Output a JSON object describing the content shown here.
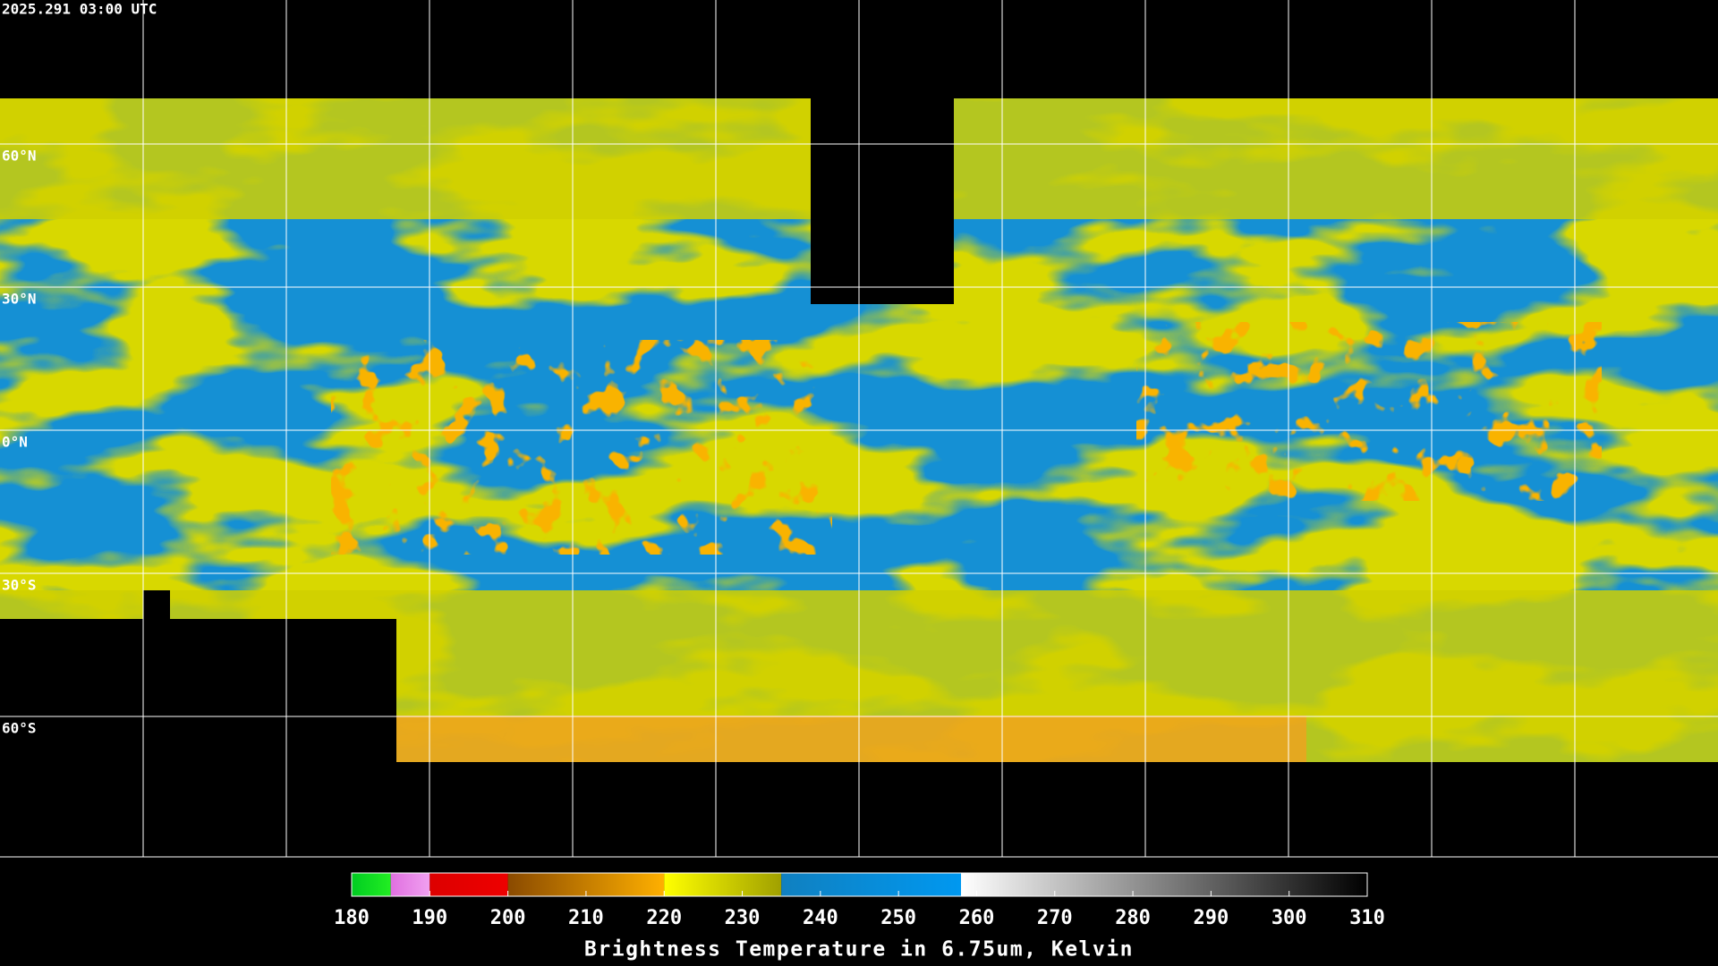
{
  "timestamp": "2025.291 03:00 UTC",
  "lat_lines": [
    {
      "value": 60,
      "label": "60°N"
    },
    {
      "value": 30,
      "label": "30°N"
    },
    {
      "value": 0,
      "label": "0°N"
    },
    {
      "value": -30,
      "label": "30°S"
    },
    {
      "value": -60,
      "label": "60°S"
    }
  ],
  "colorbar": {
    "title": "Brightness Temperature in 6.75um, Kelvin",
    "lim": [
      180,
      310
    ],
    "ticks": [
      180,
      190,
      200,
      210,
      220,
      230,
      240,
      250,
      260,
      270,
      280,
      290,
      300,
      310
    ],
    "segments": [
      {
        "from": 180,
        "to": 185,
        "colors": [
          "#00cc22",
          "#22ee22"
        ]
      },
      {
        "from": 185,
        "to": 190,
        "colors": [
          "#e070e0",
          "#f0a0f0"
        ]
      },
      {
        "from": 190,
        "to": 200,
        "colors": [
          "#dd0000",
          "#ee0000"
        ]
      },
      {
        "from": 200,
        "to": 220,
        "colors": [
          "#8a4a00",
          "#ffb000"
        ]
      },
      {
        "from": 220,
        "to": 235,
        "colors": [
          "#ffff00",
          "#a0a000"
        ]
      },
      {
        "from": 235,
        "to": 258,
        "colors": [
          "#1080c0",
          "#0098f0"
        ]
      },
      {
        "from": 258,
        "to": 310,
        "colors": [
          "#ffffff",
          "#000000"
        ]
      }
    ]
  }
}
